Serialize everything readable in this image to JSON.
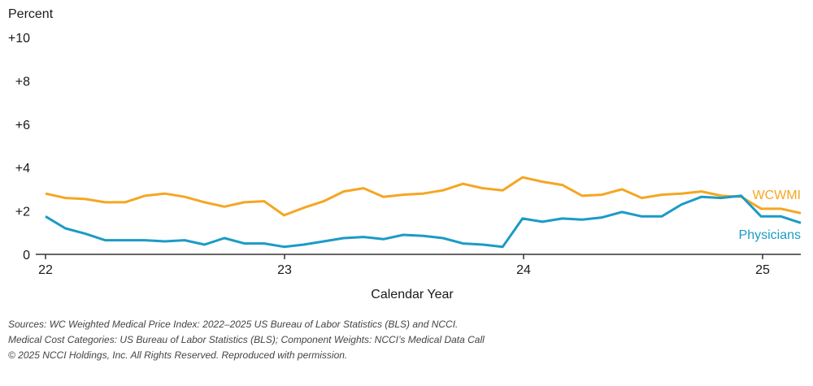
{
  "chart_data": {
    "type": "line",
    "ylabel": "Percent",
    "xlabel": "Calendar Year",
    "ylim": [
      0,
      10
    ],
    "yticks": [
      "0",
      "+2",
      "+4",
      "+6",
      "+8",
      "+10"
    ],
    "xlim": [
      0,
      3.2
    ],
    "xticks": [
      {
        "label": "22",
        "x": 0
      },
      {
        "label": "23",
        "x": 1
      },
      {
        "label": "24",
        "x": 2
      },
      {
        "label": "25",
        "x": 3
      }
    ],
    "colors": {
      "wcwmi": "#F5A623",
      "physicians": "#1B9BC6",
      "axis": "#333333"
    },
    "series": [
      {
        "name": "WCWMI",
        "key": "wcwmi",
        "values": [
          2.8,
          2.6,
          2.55,
          2.4,
          2.4,
          2.7,
          2.8,
          2.65,
          2.4,
          2.2,
          2.4,
          2.45,
          1.8,
          2.15,
          2.45,
          2.9,
          3.05,
          2.65,
          2.75,
          2.8,
          2.95,
          3.25,
          3.05,
          2.95,
          3.55,
          3.35,
          3.2,
          2.7,
          2.75,
          3.0,
          2.6,
          2.75,
          2.8,
          2.9,
          2.7,
          2.65,
          2.1,
          2.1,
          1.9
        ]
      },
      {
        "name": "Physicians",
        "key": "physicians",
        "values": [
          1.75,
          1.2,
          0.95,
          0.65,
          0.65,
          0.65,
          0.6,
          0.65,
          0.45,
          0.75,
          0.5,
          0.5,
          0.35,
          0.45,
          0.6,
          0.75,
          0.8,
          0.7,
          0.9,
          0.85,
          0.75,
          0.5,
          0.45,
          0.35,
          1.65,
          1.5,
          1.65,
          1.6,
          1.7,
          1.95,
          1.75,
          1.75,
          2.3,
          2.65,
          2.6,
          2.7,
          1.75,
          1.75,
          1.45
        ]
      }
    ]
  },
  "sources": [
    "Sources: WC Weighted Medical Price Index: 2022–2025 US Bureau of Labor Statistics (BLS) and NCCI.",
    "Medical Cost Categories: US Bureau of Labor Statistics (BLS); Component Weights: NCCI’s Medical Data Call",
    "© 2025 NCCI Holdings, Inc. All Rights Reserved. Reproduced with permission."
  ]
}
